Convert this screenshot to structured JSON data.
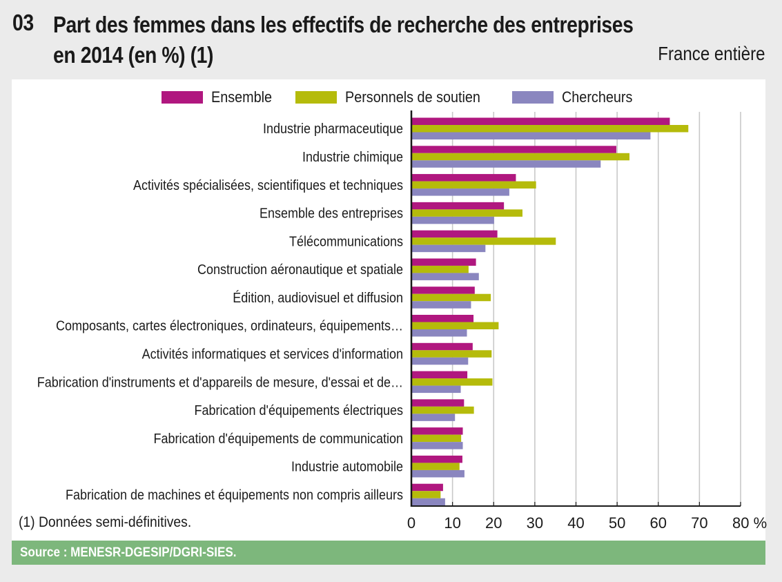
{
  "header": {
    "number": "03",
    "title_line1": "Part des femmes dans les effectifs de recherche des entreprises",
    "title_line2": "en 2014 (en %) (1)",
    "scope": "France entière"
  },
  "colors": {
    "ensemble": "#b0177f",
    "soutien": "#b5bb0b",
    "chercheurs": "#8a86bf",
    "gridline": "#c8c8c8",
    "axis": "#1a1a1a",
    "source_bg": "#7db77c"
  },
  "note": "(1) Données semi-définitives.",
  "source": "Source : MENESR-DGESIP/DGRI-SIES.",
  "chart_data": {
    "type": "bar",
    "orientation": "horizontal",
    "title": "Part des femmes dans les effectifs de recherche des entreprises en 2014 (en %) (1)",
    "xlabel": "%",
    "ylabel": "",
    "xlim": [
      0,
      80
    ],
    "xticks": [
      "0",
      "10",
      "20",
      "30",
      "40",
      "50",
      "60",
      "70",
      "80 %"
    ],
    "grid": "vertical",
    "legend_position": "top",
    "categories": [
      "Industrie pharmaceutique",
      "Industrie chimique",
      "Activités spécialisées, scientifiques et techniques",
      "Ensemble des entreprises",
      "Télécommunications",
      "Construction aéronautique et spatiale",
      "Édition, audiovisuel et diffusion",
      "Composants, cartes électroniques, ordinateurs, équipements…",
      "Activités informatiques et services d'information",
      "Fabrication d'instruments et d'appareils de mesure, d'essai et de…",
      "Fabrication d'équipements électriques",
      "Fabrication d'équipements de communication",
      "Industrie automobile",
      "Fabrication de machines et équipements non compris ailleurs"
    ],
    "series": [
      {
        "name": "Ensemble",
        "color_key": "ensemble",
        "values": [
          62.8,
          49.8,
          25.4,
          22.5,
          20.9,
          15.7,
          15.4,
          15.1,
          14.9,
          13.6,
          12.8,
          12.5,
          12.4,
          7.7
        ]
      },
      {
        "name": "Personnels de soutien",
        "color_key": "soutien",
        "values": [
          67.3,
          53.0,
          30.3,
          27.0,
          35.1,
          13.9,
          19.3,
          21.2,
          19.5,
          19.7,
          15.2,
          12.1,
          11.7,
          7.1
        ]
      },
      {
        "name": "Chercheurs",
        "color_key": "chercheurs",
        "values": [
          58.1,
          46.0,
          23.8,
          20.1,
          18.0,
          16.4,
          14.5,
          13.5,
          13.8,
          12.0,
          10.6,
          12.5,
          12.9,
          8.2
        ]
      }
    ]
  }
}
